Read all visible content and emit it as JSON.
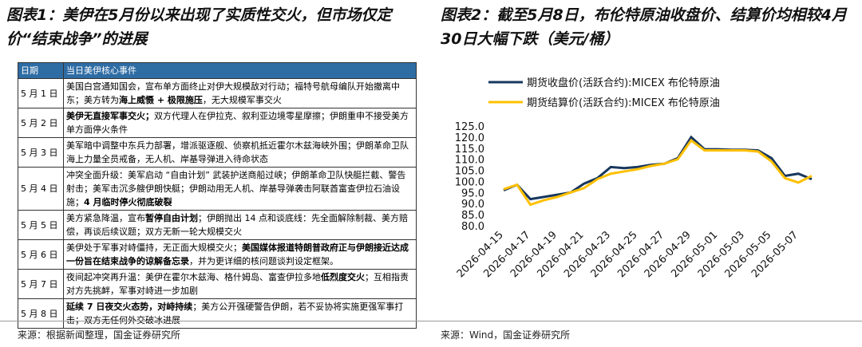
{
  "left": {
    "title": "图表1：美伊在5月份以来出现了实质性交火，但市场仅定价“结束战争”的进展",
    "table": {
      "header": [
        "日期",
        "当日美伊核心事件"
      ],
      "rows": [
        {
          "date": "5 月 1 日",
          "event": [
            {
              "text": "美国白宫通知国会，宣布单方面终止对伊大规模敌对行动；福特号航母编队开始撤离中东；美方转为"
            },
            {
              "text": "海上威慑 + 极限施压",
              "bold": true
            },
            {
              "text": "，无大规模军事交火"
            }
          ]
        },
        {
          "date": "5 月 2 日",
          "event": [
            {
              "text": "美伊无直接军事交火；",
              "bold": true
            },
            {
              "text": "双方代理人在伊拉克、叙利亚边境零星摩擦；伊朗重申不接受美方单方面停火条件"
            }
          ]
        },
        {
          "date": "5 月 3 日",
          "event": [
            {
              "text": "美军暗中调整中东兵力部署，增派驱逐舰、侦察机抵近霍尔木兹海峡外围；伊朗革命卫队海上力量全员戒备，无人机、岸基导弹进入待命状态"
            }
          ]
        },
        {
          "date": "5 月 4 日",
          "event": [
            {
              "text": "冲突全面升级：美军启动 “自由计划” 武装护送商船过峡；伊朗革命卫队快艇拦截、警告射击；美军击沉多艘伊朗快艇；伊朗动用无人机、岸基导弹袭击阿联酋富查伊拉石油设施；"
            },
            {
              "text": "4 月临时停火彻底破裂",
              "bold": true
            }
          ]
        },
        {
          "date": "5 月 5 日",
          "event": [
            {
              "text": "美方紧急降温，宣布"
            },
            {
              "text": "暂停自由计划",
              "bold": true
            },
            {
              "text": "；伊朗抛出 14 点和谈底线：先全面解除制裁、美方赔偿，再谈后续议题；双方无新一轮大规模交火"
            }
          ]
        },
        {
          "date": "5 月 6 日",
          "event": [
            {
              "text": "美伊处于军事对峙僵持，无正面大规模交火；"
            },
            {
              "text": "美国媒体报道特朗普政府正与伊朗接近达成一份旨在结束战争的谅解备忘录",
              "bold": true
            },
            {
              "text": "，并为更详细的核问题谈判设定框架。"
            }
          ]
        },
        {
          "date": "5 月 7 日",
          "event": [
            {
              "text": "夜间起冲突再升温：美伊在霍尔木兹海、格什姆岛、富查伊拉多地"
            },
            {
              "text": "低烈度交火",
              "bold": true
            },
            {
              "text": "；互相指责对方先挑衅，军事对峙进一步加剧"
            }
          ]
        },
        {
          "date": "5 月 8 日",
          "event": [
            {
              "text": "延续 7 日夜交火态势，对峙持续",
              "bold": true
            },
            {
              "text": "；美方公开强硬警告伊朗，若不妥协将实施更强军事打击；双方无任何外交破冰进展"
            }
          ]
        }
      ]
    },
    "source": "来源：根据新闻整理，国金证券研究所"
  },
  "chart_data": {
    "type": "line",
    "title": "图表2：截至5月8日，布伦特原油收盘价、结算价均相较4月30日大幅下跌（美元/桶）",
    "categories": [
      "2026-04-15",
      null,
      "2026-04-17",
      null,
      "2026-04-19",
      null,
      "2026-04-21",
      null,
      "2026-04-23",
      null,
      "2026-04-25",
      null,
      "2026-04-27",
      null,
      "2026-04-29",
      null,
      "2026-05-01",
      null,
      "2026-05-03",
      null,
      "2026-05-05",
      null,
      "2026-05-07",
      null
    ],
    "series": [
      {
        "name": "期货收盘价(活跃合约):MICEX 布伦特原油",
        "color": "#17375e",
        "values": [
          96,
          98.5,
          92,
          93,
          94,
          95,
          99,
          101.5,
          106.5,
          106,
          106.5,
          107.5,
          108,
          110.5,
          120,
          114.5,
          114.5,
          114.3,
          114.3,
          114,
          110.5,
          102.5,
          103.5,
          101
        ]
      },
      {
        "name": "期货结算价(活跃合约):MICEX 布伦特原油",
        "color": "#ffc000",
        "values": [
          96.5,
          98.5,
          89.5,
          91.5,
          93,
          95,
          97,
          101,
          103.5,
          104.5,
          105.5,
          107,
          108,
          110,
          118.5,
          114,
          114,
          114,
          114,
          113.5,
          109,
          101.5,
          99.5,
          102.5
        ]
      }
    ],
    "ylim": [
      80,
      125
    ],
    "yticks": [
      {
        "value": 80,
        "label": "80.0"
      },
      {
        "value": 85,
        "label": "85.0"
      },
      {
        "value": 90,
        "label": "90.0"
      },
      {
        "value": 95,
        "label": "95.0"
      },
      {
        "value": 100,
        "label": "100.0"
      },
      {
        "value": 105,
        "label": "105.0"
      },
      {
        "value": 110,
        "label": "110.0"
      },
      {
        "value": 115,
        "label": "115.0"
      },
      {
        "value": 120,
        "label": "120.0"
      },
      {
        "value": 125,
        "label": "125.0"
      }
    ],
    "legend": "top",
    "source": "来源：Wind，国金证券研究所"
  }
}
